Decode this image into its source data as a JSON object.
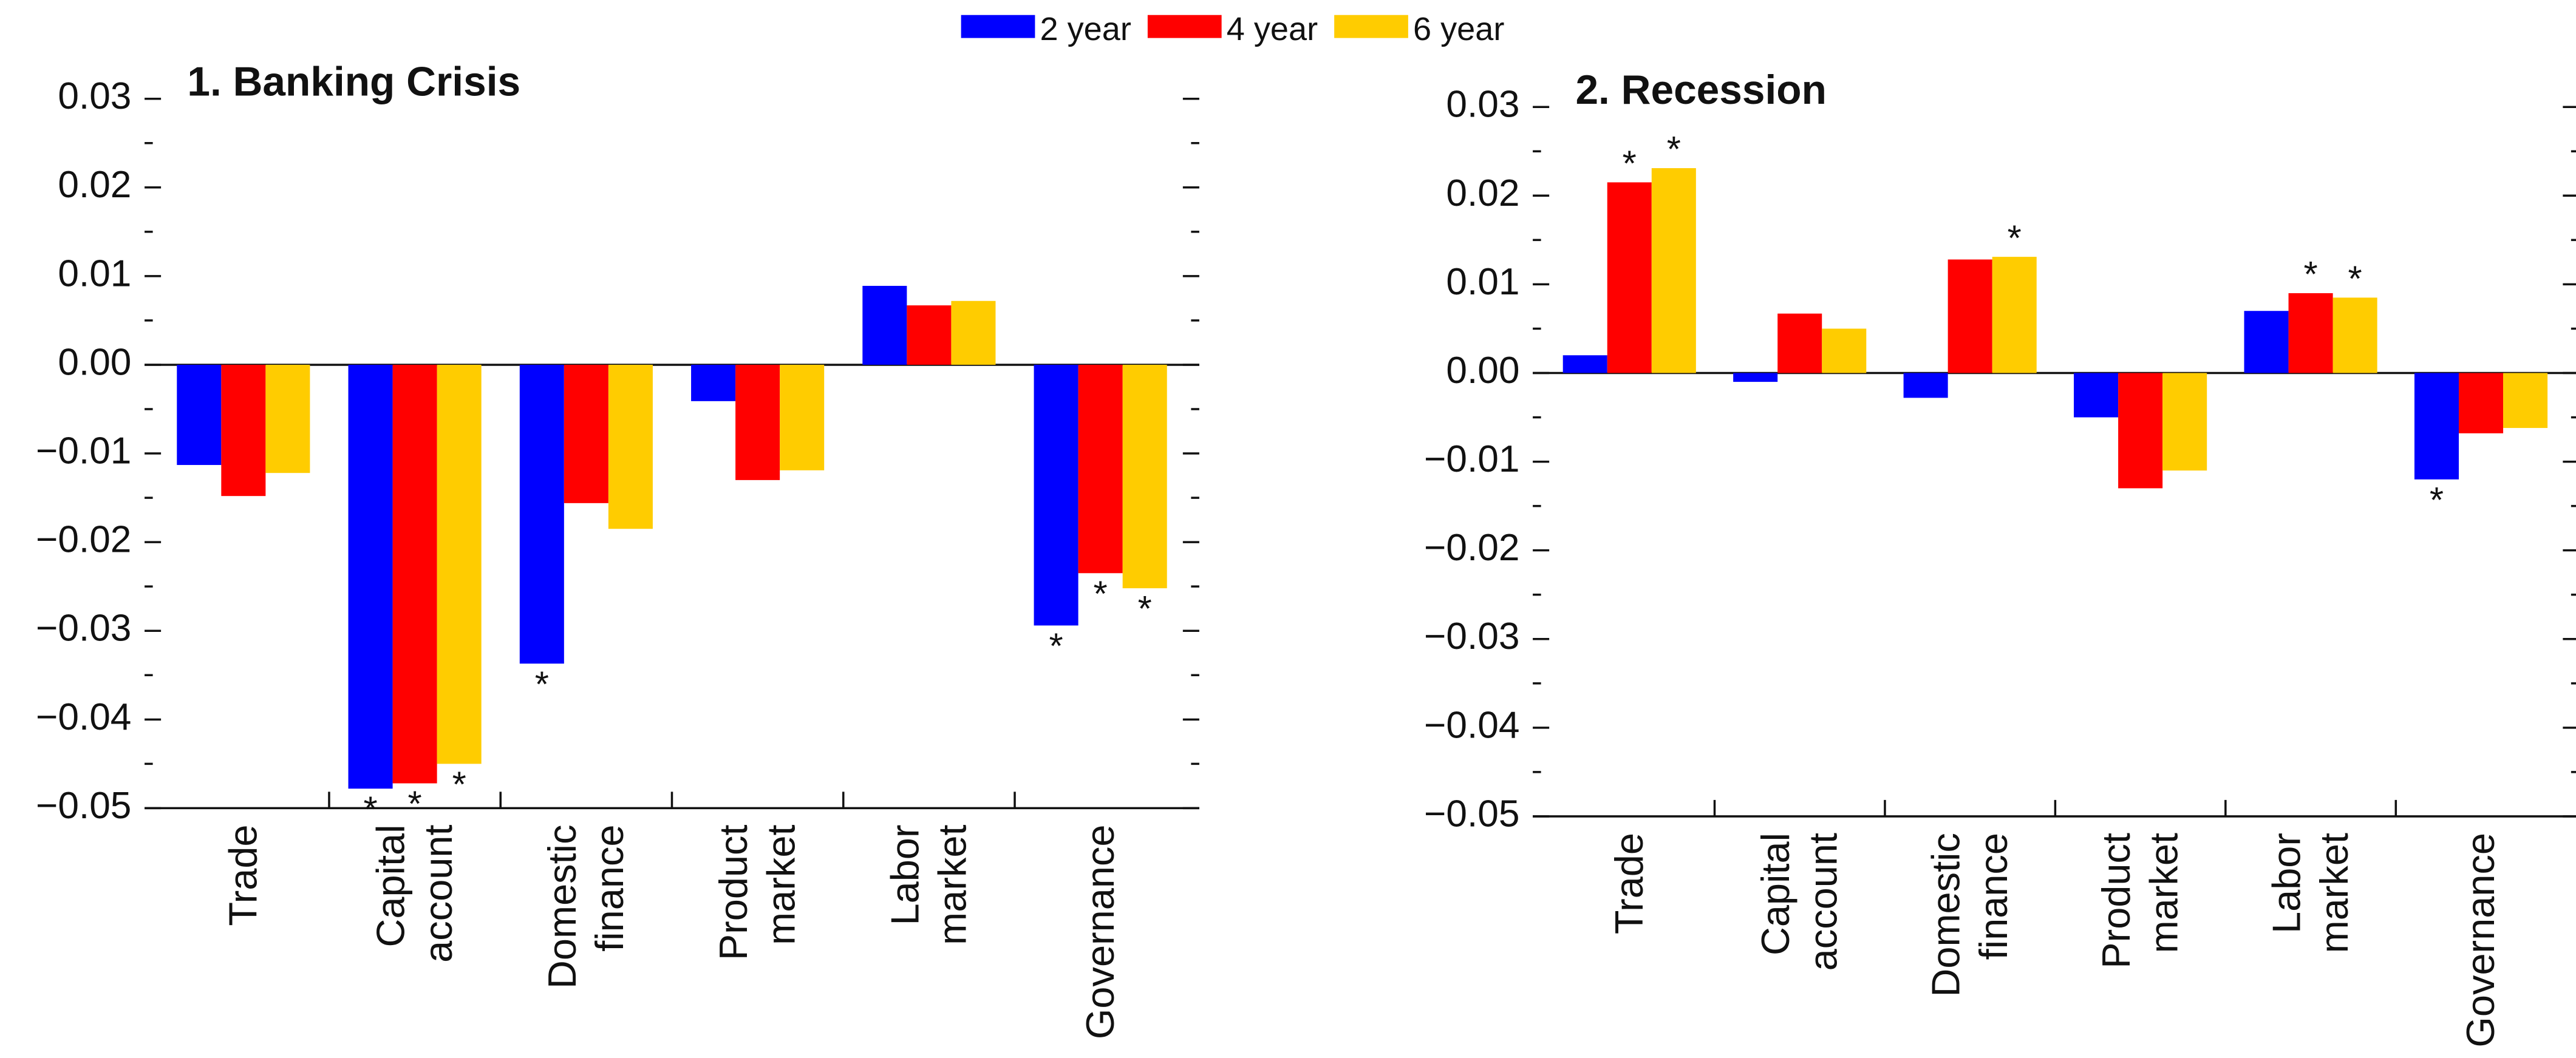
{
  "legend": [
    {
      "name": "2 year",
      "color": "#0000ff"
    },
    {
      "name": "4 year",
      "color": "#ff0000"
    },
    {
      "name": "6 year",
      "color": "#ffcc00"
    }
  ],
  "chart_data": [
    {
      "type": "bar",
      "title": "1. Banking Crisis",
      "categories": [
        [
          "Trade"
        ],
        [
          "Capital",
          "account"
        ],
        [
          "Domestic",
          "finance"
        ],
        [
          "Product",
          "market"
        ],
        [
          "Labor",
          "market"
        ],
        [
          "Governance"
        ]
      ],
      "series": [
        {
          "values": [
            -0.0113,
            -0.0478,
            -0.0337,
            -0.0041,
            0.0089,
            -0.0294
          ],
          "markers": [
            null,
            "*",
            "*",
            null,
            null,
            "*"
          ]
        },
        {
          "values": [
            -0.0148,
            -0.0472,
            -0.0156,
            -0.013,
            0.0067,
            -0.0235
          ],
          "markers": [
            null,
            "*",
            null,
            null,
            null,
            "*"
          ]
        },
        {
          "values": [
            -0.0122,
            -0.045,
            -0.0185,
            -0.0119,
            0.0072,
            -0.0252
          ],
          "markers": [
            null,
            "*",
            null,
            null,
            null,
            "*"
          ]
        }
      ],
      "ylim": [
        -0.05,
        0.03
      ],
      "yticks": [
        {
          "value": -0.05,
          "label": "−0.05"
        },
        {
          "value": -0.04,
          "label": "−0.04"
        },
        {
          "value": -0.03,
          "label": "−0.03"
        },
        {
          "value": -0.02,
          "label": "−0.02"
        },
        {
          "value": -0.01,
          "label": "−0.01"
        },
        {
          "value": 0,
          "label": "0.00"
        },
        0.01,
        0.02,
        0.03
      ]
    },
    {
      "type": "bar",
      "title": "2. Recession",
      "categories": [
        [
          "Trade"
        ],
        [
          "Capital",
          "account"
        ],
        [
          "Domestic",
          "finance"
        ],
        [
          "Product",
          "market"
        ],
        [
          "Labor",
          "market"
        ],
        [
          "Governance"
        ]
      ],
      "series": [
        {
          "values": [
            0.002,
            -0.001,
            -0.0028,
            -0.005,
            0.007,
            -0.012
          ],
          "markers": [
            null,
            null,
            null,
            null,
            null,
            "*"
          ]
        },
        {
          "values": [
            0.0215,
            0.0067,
            0.0128,
            -0.013,
            0.009,
            -0.0068
          ],
          "markers": [
            "*",
            null,
            null,
            null,
            "*",
            null
          ]
        },
        {
          "values": [
            0.0231,
            0.005,
            0.0131,
            -0.011,
            0.0085,
            -0.0062
          ],
          "markers": [
            "*",
            null,
            "*",
            null,
            "*",
            null
          ]
        }
      ],
      "ylim": [
        -0.05,
        0.03
      ],
      "yticks": [
        {
          "value": -0.05,
          "label": "−0.05"
        },
        {
          "value": -0.04,
          "label": "−0.04"
        },
        {
          "value": -0.03,
          "label": "−0.03"
        },
        {
          "value": -0.02,
          "label": "−0.02"
        },
        {
          "value": -0.01,
          "label": "−0.01"
        },
        {
          "value": 0,
          "label": "0.00"
        },
        0.01,
        0.02,
        0.03
      ]
    }
  ]
}
